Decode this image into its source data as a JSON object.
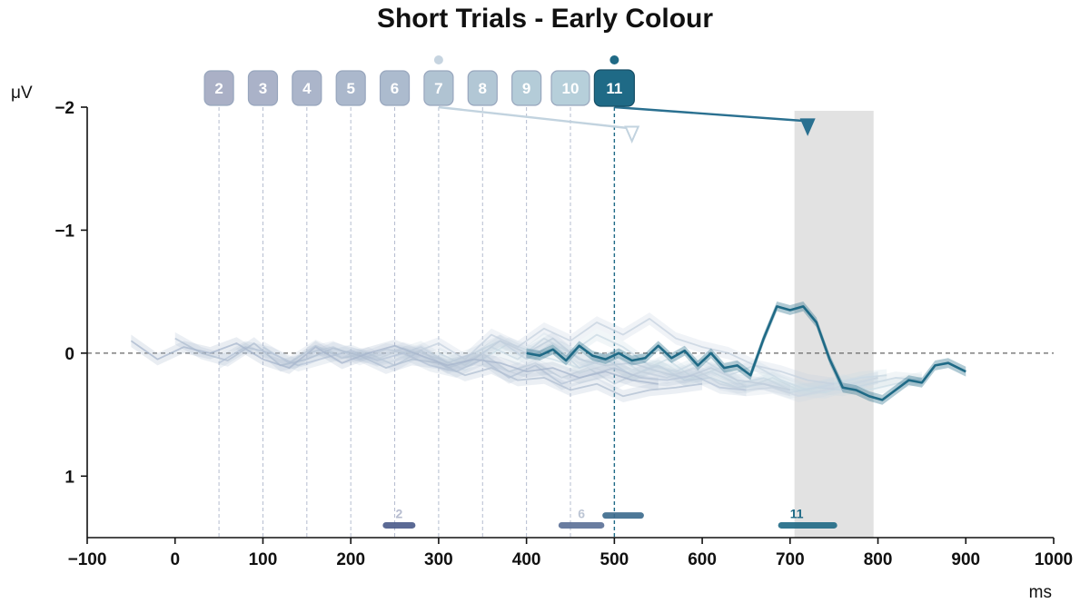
{
  "chart_data": {
    "type": "line",
    "title": "Short Trials - Early Colour",
    "xlabel": "ms",
    "ylabel": "μV",
    "xlim": [
      -100,
      1000
    ],
    "ylim": [
      -2,
      1.5
    ],
    "y_inverted": true,
    "x_ticks": [
      -100,
      0,
      100,
      200,
      300,
      400,
      500,
      600,
      700,
      800,
      900,
      1000
    ],
    "x_tick_labels": [
      "−100",
      "0",
      "100",
      "200",
      "300",
      "400",
      "500",
      "600",
      "700",
      "800",
      "900",
      "1000"
    ],
    "y_ticks": [
      -2,
      -1,
      0,
      1
    ],
    "y_tick_labels": [
      "−2",
      "−1",
      "0",
      "1"
    ],
    "zero_line": 0,
    "grid": false,
    "highlight_window": [
      705,
      795
    ],
    "markers": [
      {
        "label": "2",
        "onset": 50,
        "color": "#aab0c6"
      },
      {
        "label": "3",
        "onset": 100,
        "color": "#aab2c8"
      },
      {
        "label": "4",
        "onset": 150,
        "color": "#abb5ca"
      },
      {
        "label": "5",
        "onset": 200,
        "color": "#abb8cc"
      },
      {
        "label": "6",
        "onset": 250,
        "color": "#acbbce"
      },
      {
        "label": "7",
        "onset": 300,
        "color": "#b0c3d2"
      },
      {
        "label": "8",
        "onset": 350,
        "color": "#b2c7d5"
      },
      {
        "label": "9",
        "onset": 400,
        "color": "#b4ccd8"
      },
      {
        "label": "10",
        "onset": 450,
        "color": "#b6cfda"
      },
      {
        "label": "11",
        "onset": 500,
        "color": "#1f6a86"
      }
    ],
    "active_marker": "11",
    "dot_markers": [
      "7",
      "11"
    ],
    "arrows": [
      {
        "from_marker": "7",
        "to": [
          520,
          -1.76
        ],
        "color": "#c2d3df"
      },
      {
        "from_marker": "11",
        "to": [
          720,
          -1.82
        ],
        "color": "#2a7090"
      }
    ],
    "significance_bars": [
      {
        "label": "2",
        "x": [
          240,
          270
        ],
        "y": 1.4,
        "color": "#4a5a8a"
      },
      {
        "label": "6",
        "x": [
          440,
          485
        ],
        "y": 1.4,
        "color": "#5a7096"
      },
      {
        "label": "",
        "x": [
          490,
          530
        ],
        "y": 1.32,
        "color": "#3a6a8c"
      },
      {
        "label": "11",
        "x": [
          690,
          750
        ],
        "y": 1.4,
        "color": "#1f6a86"
      }
    ],
    "series": [
      {
        "color": "#1f6a86",
        "band": 0.04,
        "x": [
          400,
          415,
          430,
          445,
          460,
          475,
          490,
          505,
          520,
          535,
          550,
          565,
          580,
          595,
          610,
          625,
          640,
          655,
          670,
          685,
          700,
          715,
          730,
          745,
          760,
          775,
          790,
          805,
          820,
          835,
          850,
          865,
          880,
          900
        ],
        "values": [
          0.0,
          0.02,
          -0.03,
          0.06,
          -0.06,
          0.02,
          0.05,
          0.0,
          0.06,
          0.04,
          -0.06,
          0.04,
          -0.02,
          0.1,
          0.0,
          0.12,
          0.1,
          0.18,
          -0.12,
          -0.38,
          -0.35,
          -0.38,
          -0.25,
          0.05,
          0.28,
          0.3,
          0.35,
          0.38,
          0.3,
          0.22,
          0.24,
          0.1,
          0.08,
          0.15
        ]
      },
      {
        "color": "#a7b6cc",
        "band": 0.05,
        "x": [
          -50,
          -20,
          10,
          40,
          70,
          100,
          130,
          160,
          190,
          220,
          250,
          280,
          310,
          340,
          370,
          400,
          430,
          460,
          490,
          520,
          550
        ],
        "values": [
          -0.1,
          0.05,
          -0.05,
          0.0,
          -0.08,
          0.05,
          0.12,
          -0.05,
          0.08,
          0.0,
          -0.06,
          0.02,
          0.1,
          0.05,
          0.08,
          0.15,
          0.12,
          0.2,
          0.15,
          0.22,
          0.25
        ]
      },
      {
        "color": "#b0bfd2",
        "band": 0.05,
        "x": [
          0,
          30,
          60,
          90,
          120,
          150,
          180,
          210,
          240,
          270,
          300,
          330,
          360,
          390,
          420,
          450,
          480,
          510,
          540,
          570,
          600
        ],
        "values": [
          -0.12,
          0.0,
          0.06,
          -0.08,
          0.1,
          0.05,
          -0.04,
          0.02,
          0.12,
          0.05,
          0.08,
          0.18,
          0.12,
          0.22,
          0.2,
          0.3,
          0.25,
          0.35,
          0.3,
          0.28,
          0.25
        ]
      },
      {
        "color": "#b8c6d8",
        "band": 0.05,
        "x": [
          50,
          80,
          110,
          140,
          170,
          200,
          230,
          260,
          290,
          320,
          350,
          380,
          410,
          440,
          470,
          500,
          530,
          560,
          590,
          620,
          650
        ],
        "values": [
          0.08,
          -0.05,
          0.0,
          0.1,
          0.04,
          -0.02,
          0.06,
          0.0,
          0.1,
          0.15,
          0.05,
          0.2,
          0.1,
          0.25,
          0.18,
          0.12,
          0.2,
          0.22,
          0.18,
          0.28,
          0.3
        ]
      },
      {
        "color": "#bfccdb",
        "band": 0.05,
        "x": [
          100,
          130,
          160,
          190,
          220,
          250,
          280,
          310,
          340,
          370,
          400,
          430,
          460,
          490,
          520,
          550,
          580,
          610,
          640,
          670,
          700
        ],
        "values": [
          -0.05,
          0.08,
          -0.06,
          0.04,
          0.0,
          0.1,
          -0.02,
          0.12,
          0.05,
          -0.1,
          0.0,
          -0.12,
          0.05,
          0.1,
          0.08,
          0.15,
          0.2,
          0.12,
          0.22,
          0.25,
          0.3
        ]
      },
      {
        "color": "#c5d1df",
        "band": 0.05,
        "x": [
          150,
          180,
          210,
          240,
          270,
          300,
          330,
          360,
          390,
          420,
          450,
          480,
          510,
          540,
          570,
          600,
          630,
          660,
          690,
          720,
          750
        ],
        "values": [
          0.0,
          -0.05,
          0.05,
          -0.03,
          0.0,
          -0.08,
          0.05,
          -0.15,
          -0.05,
          -0.2,
          -0.1,
          -0.25,
          -0.15,
          -0.28,
          -0.12,
          -0.05,
          0.0,
          0.1,
          0.15,
          0.22,
          0.25
        ]
      },
      {
        "color": "#cbd6e2",
        "band": 0.05,
        "x": [
          200,
          230,
          260,
          290,
          320,
          350,
          380,
          410,
          440,
          470,
          500,
          530,
          560,
          590,
          620,
          650,
          680,
          710,
          740,
          770,
          800
        ],
        "values": [
          0.0,
          0.05,
          -0.04,
          0.02,
          0.1,
          0.0,
          0.15,
          0.08,
          0.2,
          0.12,
          0.25,
          0.15,
          0.2,
          0.12,
          0.25,
          0.3,
          0.28,
          0.35,
          0.3,
          0.25,
          0.2
        ]
      },
      {
        "color": "#c6d6e1",
        "band": 0.05,
        "x": [
          250,
          280,
          310,
          340,
          370,
          400,
          430,
          460,
          490,
          520,
          550,
          580,
          610,
          640,
          670,
          700,
          730,
          760,
          790,
          820,
          850
        ],
        "values": [
          0.02,
          -0.05,
          0.08,
          0.0,
          -0.1,
          0.05,
          -0.08,
          0.12,
          0.05,
          0.18,
          0.1,
          0.22,
          0.2,
          0.28,
          0.25,
          0.32,
          0.28,
          0.3,
          0.25,
          0.2,
          0.22
        ]
      },
      {
        "color": "#c9dae4",
        "band": 0.05,
        "x": [
          300,
          330,
          360,
          390,
          420,
          450,
          480,
          510,
          540,
          570,
          600,
          630,
          660,
          690,
          720,
          750,
          780,
          810
        ],
        "values": [
          0.0,
          0.1,
          -0.05,
          0.05,
          -0.12,
          0.0,
          -0.15,
          -0.05,
          0.1,
          0.15,
          0.05,
          0.18,
          0.1,
          0.22,
          0.3,
          0.25,
          0.2,
          0.18
        ]
      },
      {
        "color": "#ccdde6",
        "band": 0.05,
        "x": [
          350,
          380,
          410,
          440,
          470,
          500,
          530,
          560,
          590,
          620,
          650,
          680,
          710,
          740,
          770,
          800
        ],
        "values": [
          0.05,
          -0.08,
          0.0,
          -0.05,
          0.08,
          0.02,
          0.15,
          0.05,
          0.2,
          0.12,
          0.28,
          0.2,
          0.3,
          0.32,
          0.25,
          0.2
        ]
      },
      {
        "color": "#cfe0e8",
        "band": 0.05,
        "x": [
          400,
          430,
          460,
          490,
          520,
          550,
          580,
          610,
          640,
          670,
          700,
          730,
          760,
          790,
          820,
          850
        ],
        "values": [
          0.0,
          0.05,
          0.12,
          0.05,
          0.18,
          0.1,
          0.22,
          0.15,
          0.25,
          0.2,
          0.3,
          0.28,
          0.22,
          0.3,
          0.25,
          0.2
        ]
      }
    ]
  }
}
